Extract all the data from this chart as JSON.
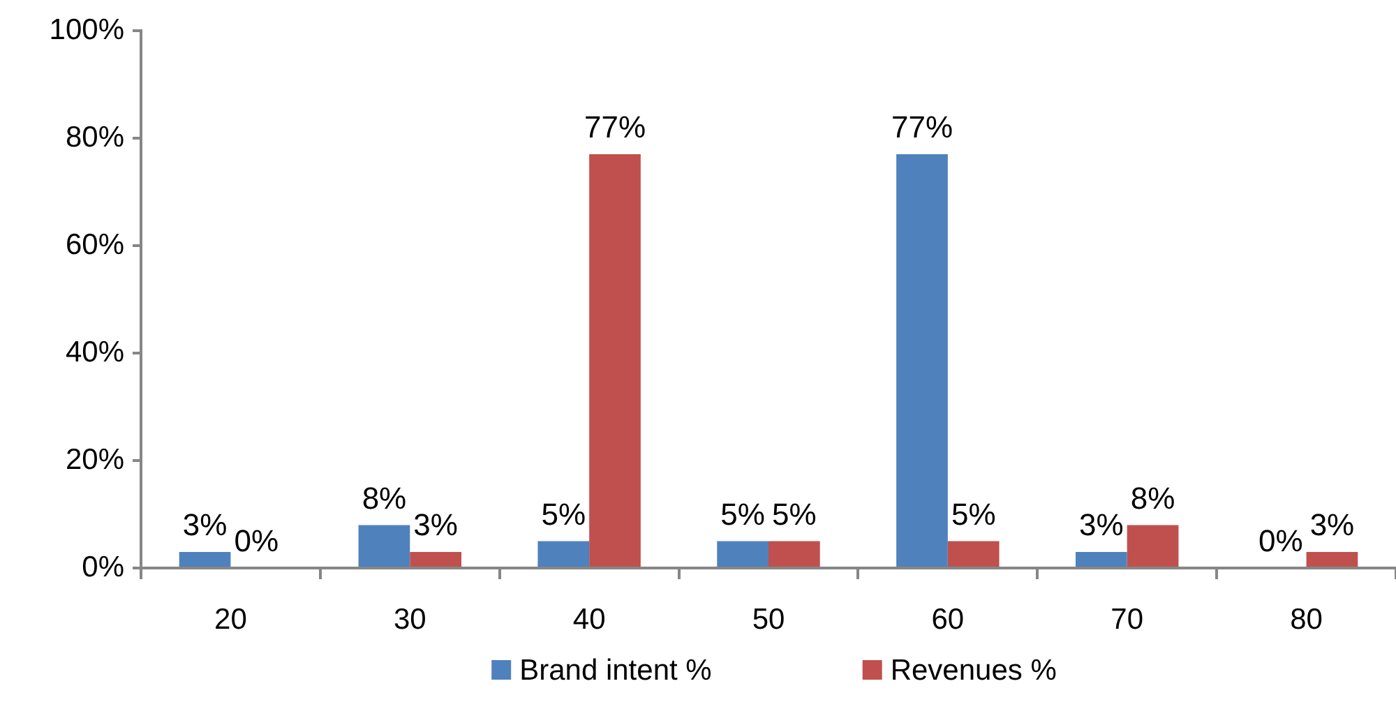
{
  "chart_data": {
    "type": "bar",
    "categories": [
      "20",
      "30",
      "40",
      "50",
      "60",
      "70",
      "80"
    ],
    "series": [
      {
        "name": "Brand intent %",
        "color": "#4f81bd",
        "values": [
          3,
          8,
          5,
          5,
          77,
          3,
          0
        ],
        "value_labels": [
          "3%",
          "8%",
          "5%",
          "5%",
          "77%",
          "3%",
          "0%"
        ]
      },
      {
        "name": "Revenues %",
        "color": "#c0504d",
        "values": [
          0,
          3,
          77,
          5,
          5,
          8,
          3
        ],
        "value_labels": [
          "0%",
          "3%",
          "77%",
          "5%",
          "5%",
          "8%",
          "3%"
        ]
      }
    ],
    "ylim": [
      0,
      100
    ],
    "yticks": [
      {
        "value": 0,
        "label": "0%"
      },
      {
        "value": 20,
        "label": "20%"
      },
      {
        "value": 40,
        "label": "40%"
      },
      {
        "value": 60,
        "label": "60%"
      },
      {
        "value": 80,
        "label": "80%"
      },
      {
        "value": 100,
        "label": "100%"
      }
    ],
    "legend": "bottom"
  }
}
